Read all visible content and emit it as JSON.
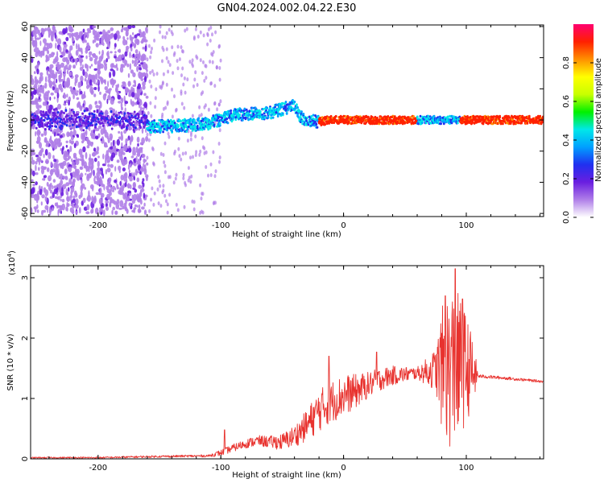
{
  "title": "GN04.2024.002.04.22.E30",
  "chart_data": [
    {
      "type": "heatmap",
      "xlabel": "Height of straight line (km)",
      "ylabel": "Frequency (Hz)",
      "xlim": [
        -255,
        163
      ],
      "ylim": [
        -62,
        61
      ],
      "xticks": [
        -200,
        -100,
        0,
        100
      ],
      "yticks": [
        -60,
        -40,
        -20,
        0,
        20,
        40,
        60
      ],
      "grid": false,
      "colorbar": {
        "label": "Normalized spectral amplitude",
        "range": [
          0,
          1
        ],
        "ticks": [
          0.0,
          0.2,
          0.4,
          0.6,
          0.8
        ],
        "colors": [
          "#ffffff",
          "#b07fe8",
          "#6a1ee0",
          "#2030f0",
          "#00a0ff",
          "#00e8e8",
          "#00f000",
          "#c8ff00",
          "#ffff00",
          "#ff9000",
          "#ff2000",
          "#ff0070"
        ]
      },
      "ridge": {
        "x": [
          -160,
          -140,
          -120,
          -110,
          -100,
          -90,
          -80,
          -70,
          -60,
          -50,
          -40,
          -35,
          -30,
          -20,
          -10,
          0,
          20,
          40,
          60,
          80,
          90,
          100,
          120,
          163
        ],
        "frequency": [
          -4,
          -4,
          -3,
          -2,
          0,
          3,
          4,
          4,
          5,
          7,
          9,
          2,
          0,
          -1,
          0,
          0,
          0,
          0,
          0,
          0,
          0,
          0,
          0,
          0
        ]
      },
      "scatter_region": {
        "x": [
          -255,
          -160
        ],
        "frequency": [
          -60,
          60
        ]
      }
    },
    {
      "type": "line",
      "xlabel": "Height of straight line (km)",
      "ylabel": "SNR (10 * v/v)",
      "scale_label": "(x10",
      "scale_exponent": "4",
      "xlim": [
        -255,
        163
      ],
      "ylim": [
        0,
        3.2
      ],
      "xticks": [
        -200,
        -100,
        0,
        100
      ],
      "yticks": [
        0,
        1,
        2,
        3
      ],
      "color": "#e8322e",
      "envelope": {
        "x": [
          -255,
          -200,
          -150,
          -110,
          -100,
          -90,
          -80,
          -70,
          -60,
          -50,
          -40,
          -30,
          -20,
          -10,
          0,
          10,
          20,
          30,
          40,
          50,
          60,
          70,
          75,
          80,
          85,
          90,
          95,
          100,
          105,
          110,
          130,
          163
        ],
        "y": [
          0.02,
          0.02,
          0.04,
          0.05,
          0.1,
          0.18,
          0.25,
          0.3,
          0.28,
          0.28,
          0.38,
          0.55,
          0.8,
          0.95,
          1.05,
          1.12,
          1.22,
          1.32,
          1.38,
          1.4,
          1.42,
          1.45,
          1.48,
          1.5,
          1.5,
          1.48,
          1.5,
          1.52,
          1.42,
          1.37,
          1.34,
          1.28
        ]
      },
      "noise_amplitude": {
        "x": [
          -255,
          -110,
          -100,
          -60,
          -40,
          -20,
          0,
          20,
          60,
          75,
          80,
          85,
          90,
          95,
          100,
          105,
          110,
          163
        ],
        "y": [
          0.01,
          0.02,
          0.05,
          0.1,
          0.18,
          0.35,
          0.35,
          0.22,
          0.1,
          0.35,
          1.0,
          1.3,
          1.4,
          1.2,
          0.9,
          0.6,
          0.03,
          0.02
        ]
      },
      "peaks": [
        {
          "x": -97,
          "y": 0.48
        },
        {
          "x": -12,
          "y": 1.7
        },
        {
          "x": 27,
          "y": 1.77
        },
        {
          "x": 83,
          "y": 2.7
        },
        {
          "x": 91,
          "y": 3.15
        },
        {
          "x": 97,
          "y": 2.65
        }
      ]
    }
  ]
}
